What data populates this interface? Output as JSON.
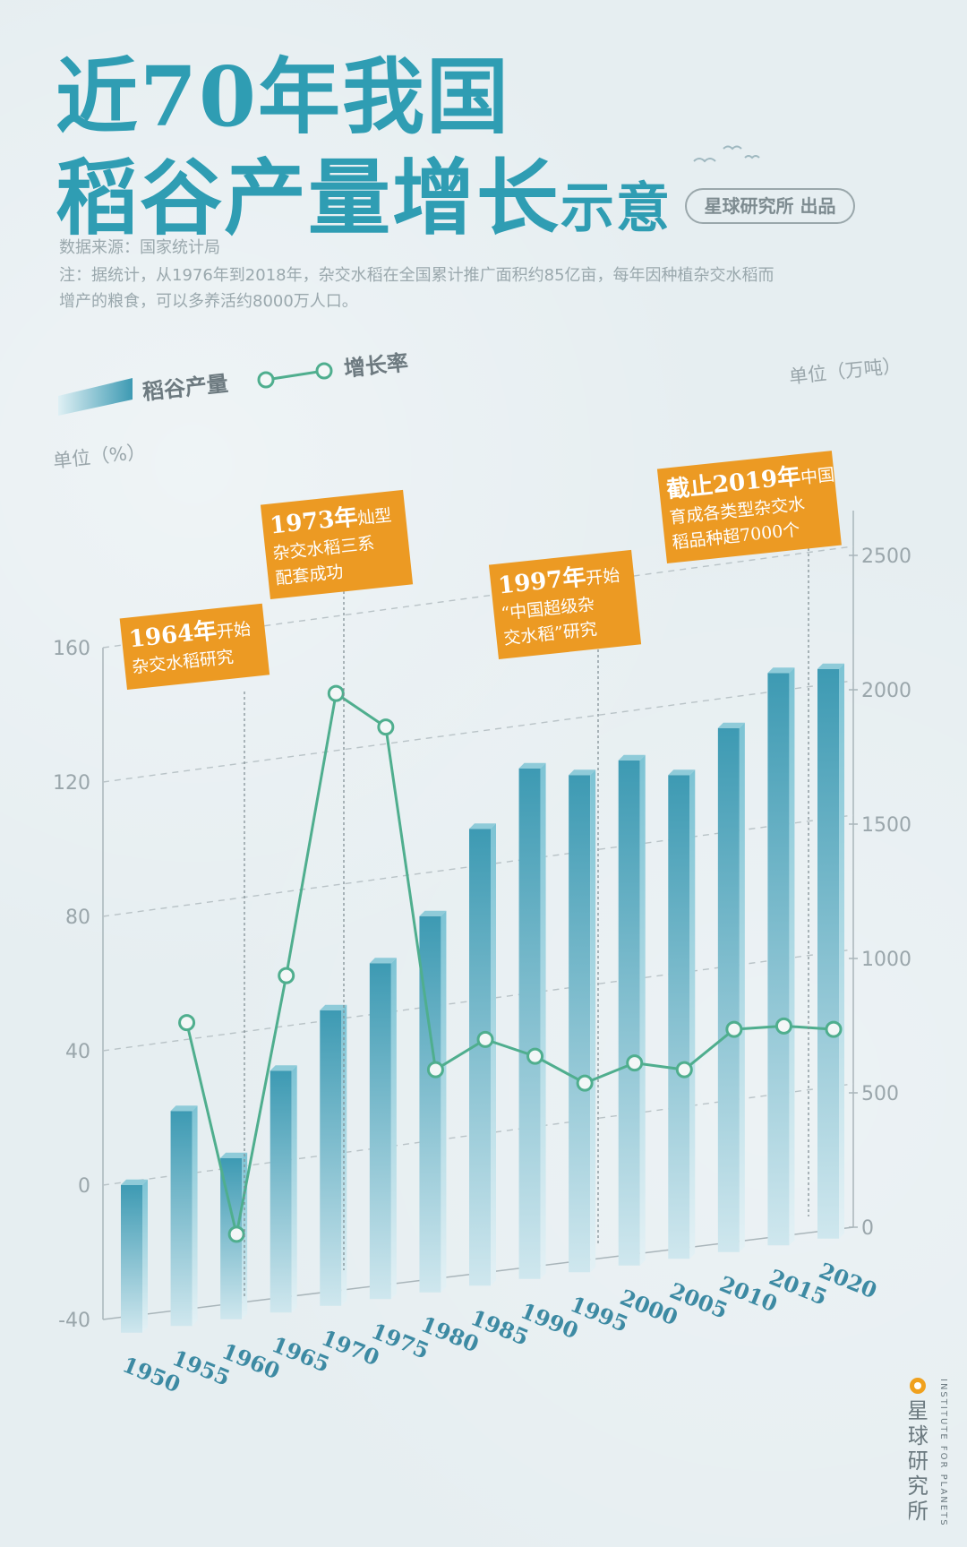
{
  "title_line1": "近70年我国",
  "title_line2_main": "稻谷产量增长",
  "title_line2_small": "示意",
  "credit": "星球研究所 出品",
  "source": "数据来源：国家统计局",
  "note_line1": "注：据统计，从1976年到2018年，杂交水稻在全国累计推广面积约85亿亩，每年因种植杂交水稻而",
  "note_line2": "增产的粮食，可以多养活约8000万人口。",
  "brand_cn": "星球研究所",
  "brand_en": "INSTITUTE FOR PLANETS",
  "colors": {
    "title": "#2f9db3",
    "bar_dark": "#3d9ab3",
    "bar_light": "#cfe7ee",
    "line": "#4fae8e",
    "callout": "#ec9a23"
  },
  "chart_data": {
    "type": "bar",
    "categories": [
      "1950",
      "1955",
      "1960",
      "1965",
      "1970",
      "1975",
      "1980",
      "1985",
      "1990",
      "1995",
      "2000",
      "2005",
      "2010",
      "2015",
      "2020"
    ],
    "series": [
      {
        "name": "稻谷产量",
        "type": "bar",
        "axis": "right",
        "values": [
          550,
          800,
          600,
          900,
          1100,
          1250,
          1400,
          1700,
          1900,
          1850,
          1880,
          1800,
          1950,
          2130,
          2120
        ]
      },
      {
        "name": "增长率",
        "type": "line",
        "axis": "left",
        "x": [
          "1955",
          "1960",
          "1965",
          "1970",
          "1975",
          "1980",
          "1985",
          "1990",
          "1995",
          "2000",
          "2005",
          "2010",
          "2015",
          "2020"
        ],
        "values": [
          45,
          -20,
          55,
          137,
          125,
          21,
          28,
          21,
          11,
          15,
          11,
          21,
          20,
          17
        ]
      }
    ],
    "left_axis": {
      "label": "单位（%）",
      "ticks": [
        "160",
        "120",
        "80",
        "40",
        "0",
        "-40"
      ],
      "ylim": [
        -40,
        160
      ]
    },
    "right_axis": {
      "label": "单位（万吨）",
      "ticks": [
        "2500",
        "2000",
        "1500",
        "1000",
        "500",
        "0"
      ],
      "ylim": [
        0,
        2500
      ]
    },
    "legend": [
      {
        "name": "稻谷产量",
        "marker": "bar"
      },
      {
        "name": "增长率",
        "marker": "line"
      }
    ],
    "annotations": [
      {
        "x": "1964",
        "line1_bold": "1964年",
        "line1_rest": "开始",
        "line2": "杂交水稻研究",
        "line3": ""
      },
      {
        "x": "1973",
        "line1_bold": "1973年",
        "line1_rest": "灿型",
        "line2": "杂交水稻三系",
        "line3": "配套成功"
      },
      {
        "x": "1997",
        "line1_bold": "1997年",
        "line1_rest": "开始",
        "line2": "“中国超级杂",
        "line3": "交水稻”研究"
      },
      {
        "x": "2019",
        "line1_bold": "截止2019年",
        "line1_rest": "中国",
        "line2": "育成各类型杂交水",
        "line3": "稻品种超7000个"
      }
    ]
  }
}
